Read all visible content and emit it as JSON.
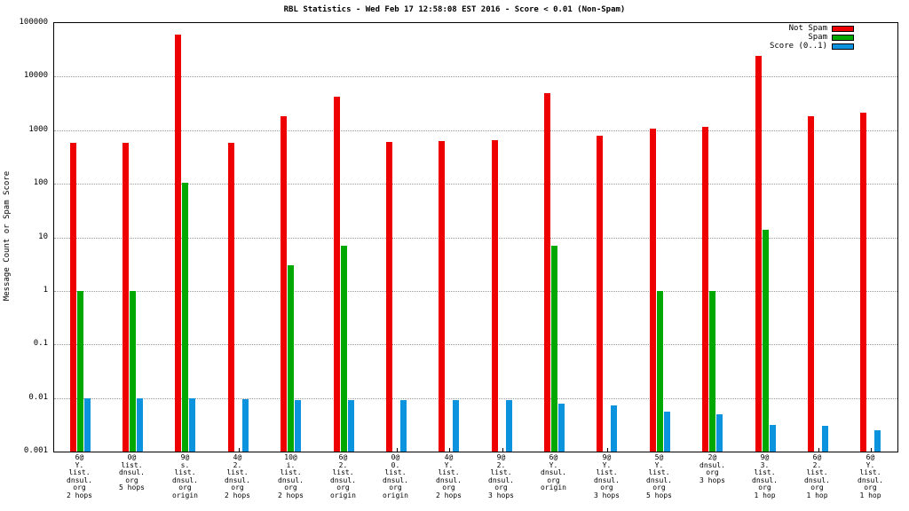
{
  "title": "RBL Statistics - Wed Feb 17 12:58:08 EST 2016 - Score < 0.01 (Non-Spam)",
  "ylabel": "Message Count or Spam Score",
  "chart_data": {
    "type": "bar",
    "scale": "log",
    "grid": true,
    "legend_position": "top-right",
    "ylim": [
      0.001,
      100000
    ],
    "ytick_labels": [
      "100000",
      "10000",
      "1000",
      "100",
      "10",
      "1",
      "0.1",
      "0.01",
      "0.001"
    ],
    "categories": [
      [
        "6@",
        "Y.",
        "list.",
        "dnsul.",
        "org",
        "2 hops"
      ],
      [
        "0@",
        "list.",
        "dnsul.",
        "org",
        "5 hops"
      ],
      [
        "9@",
        "s.",
        "list.",
        "dnsul.",
        "org",
        "origin"
      ],
      [
        "4@",
        "2.",
        "list.",
        "dnsul.",
        "org",
        "2 hops"
      ],
      [
        "10@",
        "i.",
        "list.",
        "dnsul.",
        "org",
        "2 hops"
      ],
      [
        "6@",
        "2.",
        "list.",
        "dnsul.",
        "org",
        "origin"
      ],
      [
        "0@",
        "0.",
        "list.",
        "dnsul.",
        "org",
        "origin"
      ],
      [
        "4@",
        "Y.",
        "list.",
        "dnsul.",
        "org",
        "2 hops"
      ],
      [
        "9@",
        "2.",
        "list.",
        "dnsul.",
        "org",
        "3 hops"
      ],
      [
        "6@",
        "Y.",
        "dnsul.",
        "org",
        "origin"
      ],
      [
        "9@",
        "Y.",
        "list.",
        "dnsul.",
        "org",
        "3 hops"
      ],
      [
        "5@",
        "Y.",
        "list.",
        "dnsul.",
        "org",
        "5 hops"
      ],
      [
        "2@",
        "dnsul.",
        "org",
        "3 hops"
      ],
      [
        "9@",
        "3.",
        "list.",
        "dnsul.",
        "org",
        "1 hop"
      ],
      [
        "6@",
        "2.",
        "list.",
        "dnsul.",
        "org",
        "1 hop"
      ],
      [
        "6@",
        "Y.",
        "list.",
        "dnsul.",
        "org",
        "1 hop"
      ]
    ],
    "series": [
      {
        "name": "Not Spam",
        "color": "#ee0000",
        "values": [
          570,
          580,
          60000,
          590,
          1800,
          4200,
          610,
          630,
          640,
          5000,
          780,
          1050,
          1150,
          24000,
          1800,
          2100
        ]
      },
      {
        "name": "Spam",
        "color": "#00a800",
        "values": [
          1,
          1,
          105,
          null,
          3,
          7,
          null,
          null,
          null,
          7,
          null,
          1,
          1,
          14,
          null,
          null
        ]
      },
      {
        "name": "Score (0..1)",
        "color": "#0b93dd",
        "values": [
          0.01,
          0.0097,
          0.0097,
          0.0096,
          0.0093,
          0.009,
          0.0093,
          0.009,
          0.009,
          0.0077,
          0.0072,
          0.0055,
          0.005,
          0.0031,
          0.003,
          0.0025
        ]
      }
    ]
  }
}
